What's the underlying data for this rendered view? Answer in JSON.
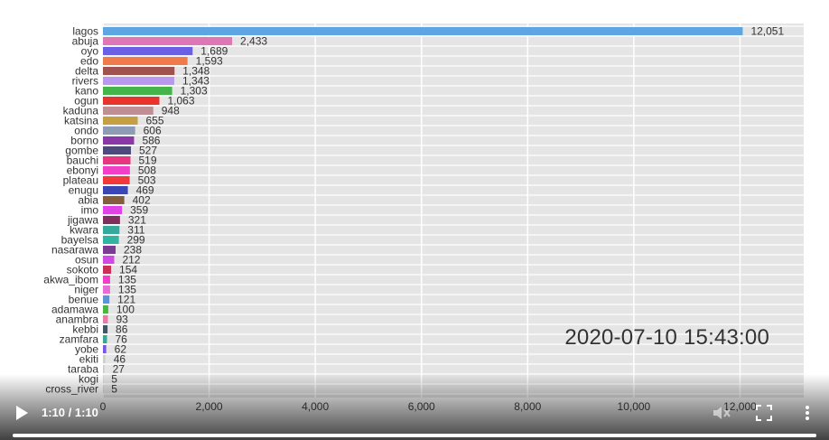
{
  "chart_data": {
    "type": "bar",
    "orientation": "horizontal",
    "categories": [
      "lagos",
      "abuja",
      "oyo",
      "edo",
      "delta",
      "rivers",
      "kano",
      "ogun",
      "kaduna",
      "katsina",
      "ondo",
      "borno",
      "gombe",
      "bauchi",
      "ebonyi",
      "plateau",
      "enugu",
      "abia",
      "imo",
      "jigawa",
      "kwara",
      "bayelsa",
      "nasarawa",
      "osun",
      "sokoto",
      "akwa_ibom",
      "niger",
      "benue",
      "adamawa",
      "anambra",
      "kebbi",
      "zamfara",
      "yobe",
      "ekiti",
      "taraba",
      "kogi",
      "cross_river"
    ],
    "values": [
      12051,
      2433,
      1689,
      1593,
      1348,
      1343,
      1303,
      1063,
      948,
      655,
      606,
      586,
      527,
      519,
      508,
      503,
      469,
      402,
      359,
      321,
      311,
      299,
      238,
      212,
      154,
      135,
      135,
      121,
      100,
      93,
      86,
      76,
      62,
      46,
      27,
      5,
      5
    ],
    "value_labels": [
      "12,051",
      "2,433",
      "1,689",
      "1,593",
      "1,348",
      "1,343",
      "1,303",
      "1,063",
      "948",
      "655",
      "606",
      "586",
      "527",
      "519",
      "508",
      "503",
      "469",
      "402",
      "359",
      "321",
      "311",
      "299",
      "238",
      "212",
      "154",
      "135",
      "135",
      "121",
      "100",
      "93",
      "86",
      "76",
      "62",
      "46",
      "27",
      "5",
      "5"
    ],
    "colors": [
      "#5da5e3",
      "#df77b6",
      "#6b5fe3",
      "#f07a4a",
      "#a0524f",
      "#b899ef",
      "#45b44b",
      "#e8342d",
      "#bf8f95",
      "#c4a042",
      "#8e9bb4",
      "#8a38a7",
      "#4e4a7b",
      "#ea3681",
      "#f33ec7",
      "#f2383b",
      "#3a46b4",
      "#845c3e",
      "#e042e8",
      "#7f2f5e",
      "#36a99d",
      "#31b4a1",
      "#7b3a94",
      "#d248e6",
      "#c93058",
      "#f13dc7",
      "#e86dd6",
      "#5a95d9",
      "#4ab541",
      "#e87aa9",
      "#445566",
      "#34a890",
      "#7a55e0",
      "#c8d4c0",
      "#cccccc",
      "#cccccc",
      "#cccccc"
    ],
    "xlim": [
      0,
      13200
    ],
    "xticks": [
      0,
      2000,
      4000,
      6000,
      8000,
      10000,
      12000
    ],
    "xtick_labels": [
      "0",
      "2,000",
      "4,000",
      "6,000",
      "8,000",
      "10,000",
      "12,000"
    ],
    "grid": true,
    "annotation": "2020-07-10 15:43:00"
  },
  "player": {
    "time": "1:10 / 1:10",
    "progress": 1.0,
    "play_icon": "play-icon",
    "mute_icon": "volume-muted-icon",
    "fullscreen_icon": "fullscreen-icon",
    "more_icon": "more-vertical-icon"
  }
}
